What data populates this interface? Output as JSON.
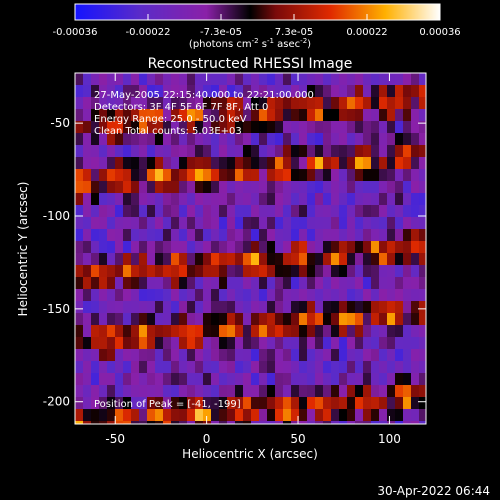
{
  "colorbar": {
    "ticks": [
      "-0.00036",
      "-0.00022",
      "-7.3e-05",
      "7.3e-05",
      "0.00022",
      "0.00036"
    ],
    "units_main": "(photons cm",
    "units_e1": "-2",
    "units_mid": " s",
    "units_e2": "-1",
    "units_mid2": " asec",
    "units_e3": "-2",
    "units_end": ")",
    "colors": [
      "#1414ff",
      "#5b2bc8",
      "#8a20a8",
      "#000000",
      "#b01010",
      "#ff5a00",
      "#ffd21e",
      "#ffffff"
    ]
  },
  "chart_data": {
    "type": "heatmap",
    "title": "Reconstructed RHESSI Image",
    "xlabel": "Heliocentric X (arcsec)",
    "ylabel": "Heliocentric Y (arcsec)",
    "xlim": [
      -72,
      120
    ],
    "ylim": [
      -212,
      -23
    ],
    "xticks": [
      -50,
      0,
      50,
      100
    ],
    "yticks": [
      -50,
      -100,
      -150,
      -200
    ],
    "color_range": [
      -0.00036,
      0.00036
    ],
    "hot_bands_y": [
      -45,
      -75,
      -125,
      -160,
      -205
    ],
    "annotations": [
      "27-May-2005 22:15:40.000 to 22:21:00.000",
      "Detectors: 3F 4F 5F 6F 7F 8F, Att 0",
      "Energy Range: 25.0 - 50.0 keV",
      "Clean    Total counts: 5.03E+03"
    ],
    "peak_label": "Position of Peak = [-41, -199]"
  },
  "footer": {
    "timestamp": "30-Apr-2022 06:44"
  }
}
